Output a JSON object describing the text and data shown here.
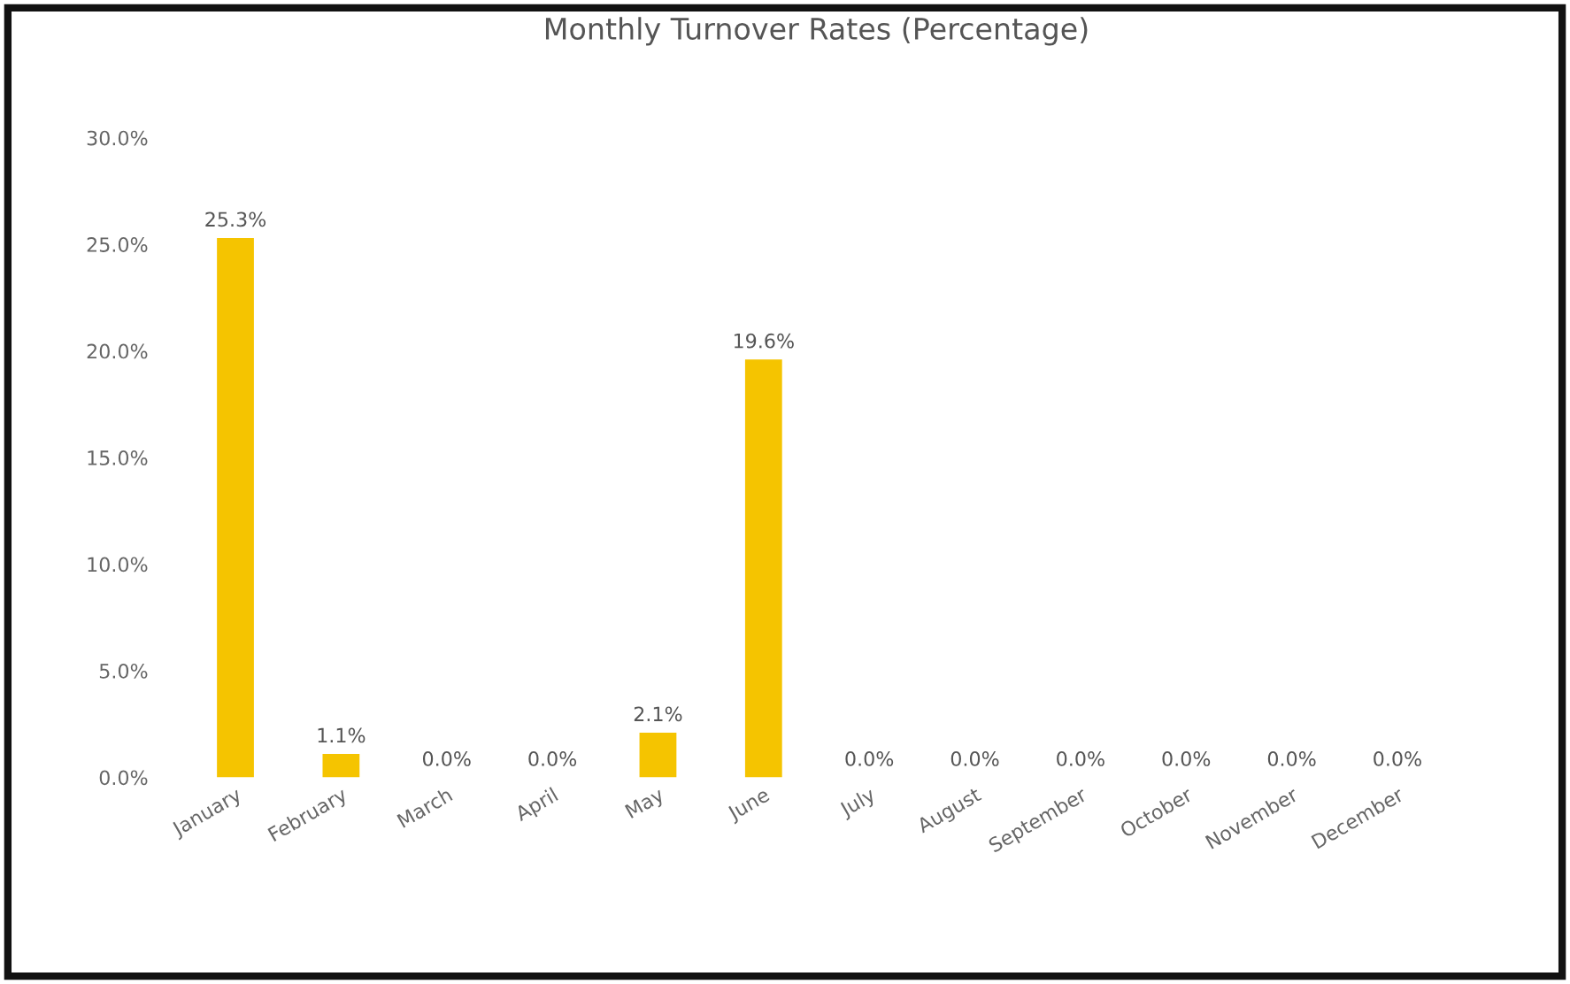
{
  "chart_data": {
    "type": "bar",
    "title": "Monthly Turnover Rates (Percentage)",
    "categories": [
      "January",
      "February",
      "March",
      "April",
      "May",
      "June",
      "July",
      "August",
      "September",
      "October",
      "November",
      "December"
    ],
    "values": [
      25.3,
      1.1,
      0.0,
      0.0,
      2.1,
      19.6,
      0.0,
      0.0,
      0.0,
      0.0,
      0.0,
      0.0
    ],
    "value_labels": [
      "25.3%",
      "1.1%",
      "0.0%",
      "0.0%",
      "2.1%",
      "19.6%",
      "0.0%",
      "0.0%",
      "0.0%",
      "0.0%",
      "0.0%",
      "0.0%"
    ],
    "color": "#f5c400",
    "ylim": [
      0,
      30
    ],
    "yticks": [
      {
        "value": 0,
        "label": "0.0%"
      },
      {
        "value": 5,
        "label": "5.0%"
      },
      {
        "value": 10,
        "label": "10.0%"
      },
      {
        "value": 15,
        "label": "15.0%"
      },
      {
        "value": 20,
        "label": "20.0%"
      },
      {
        "value": 25,
        "label": "25.0%"
      },
      {
        "value": 30,
        "label": "30.0%"
      }
    ]
  }
}
